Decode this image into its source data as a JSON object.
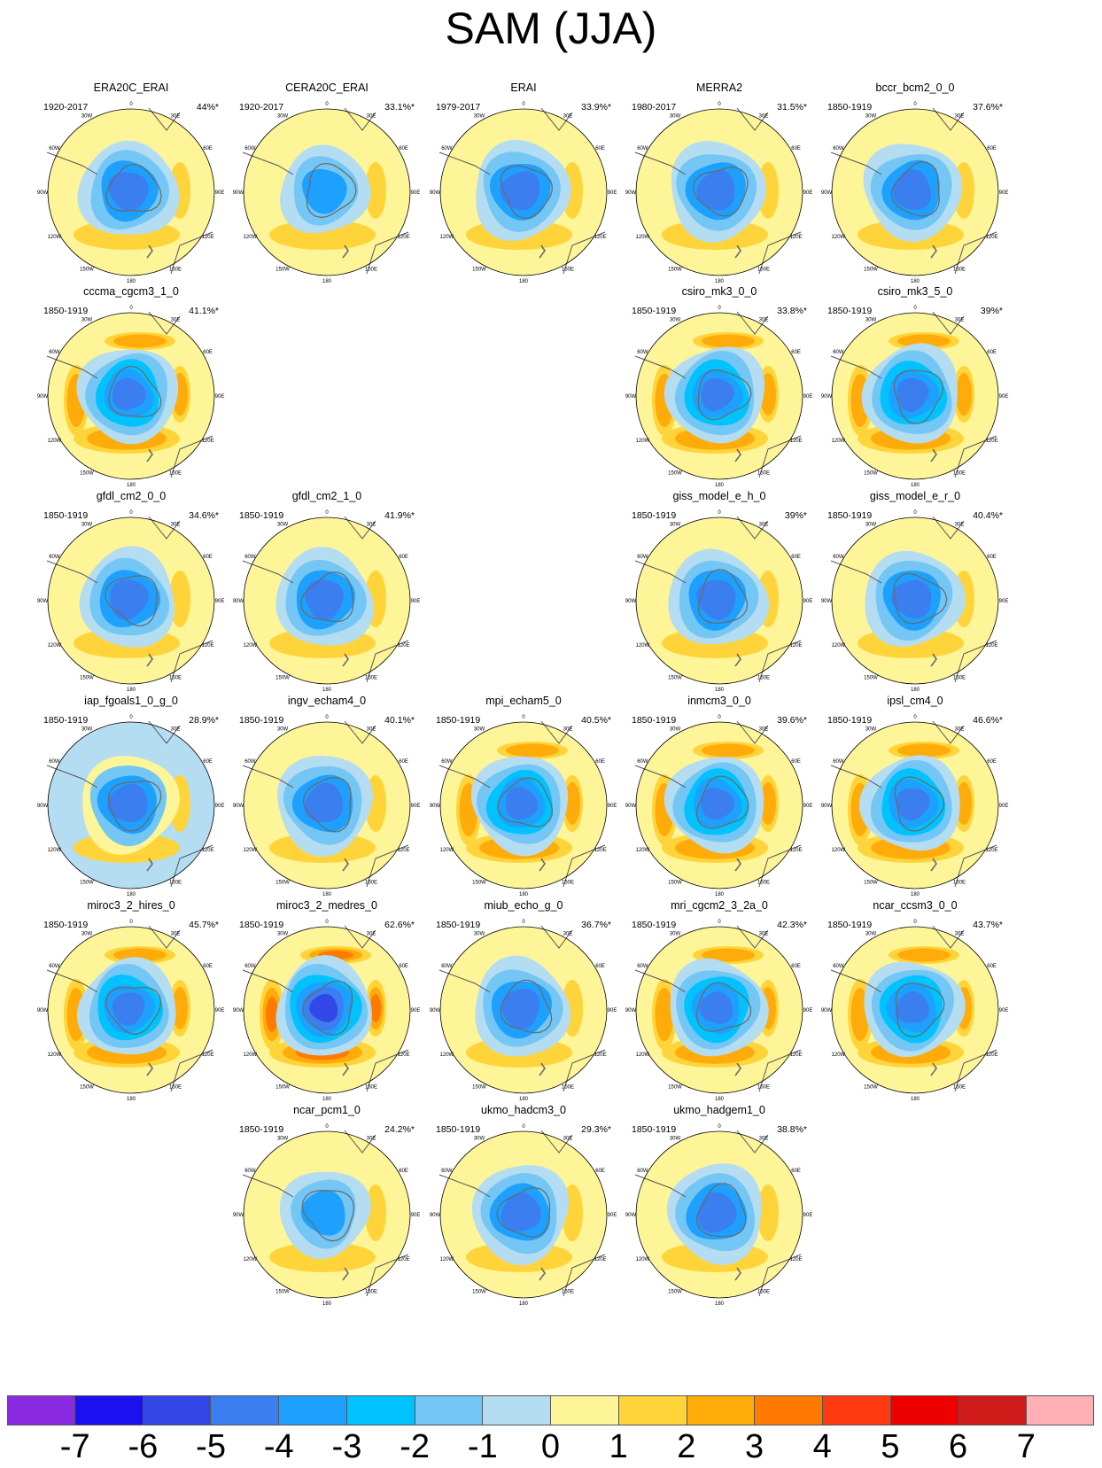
{
  "title": "SAM (JJA)",
  "longitude_labels": [
    "0",
    "30E",
    "60E",
    "90E",
    "120E",
    "150E",
    "180",
    "150W",
    "120W",
    "90W",
    "60W",
    "30W"
  ],
  "panels": [
    {
      "name": "ERA20C_ERAI",
      "period": "1920-2017",
      "variance": "44%*",
      "tone": "obs"
    },
    {
      "name": "CERA20C_ERAI",
      "period": "1920-2017",
      "variance": "33.1%*",
      "tone": "weak"
    },
    {
      "name": "ERAI",
      "period": "1979-2017",
      "variance": "33.9%*",
      "tone": "obs"
    },
    {
      "name": "MERRA2",
      "period": "1980-2017",
      "variance": "31.5%*",
      "tone": "obs"
    },
    {
      "name": "bccr_bcm2_0_0",
      "period": "1850-1919",
      "variance": "37.6%*",
      "tone": "obs"
    },
    {
      "name": "cccma_cgcm3_1_0",
      "period": "1850-1919",
      "variance": "41.1%*",
      "tone": "strong"
    },
    {
      "name": "csiro_mk3_0_0",
      "period": "1850-1919",
      "variance": "33.8%*",
      "tone": "strong"
    },
    {
      "name": "csiro_mk3_5_0",
      "period": "1850-1919",
      "variance": "39%*",
      "tone": "strong"
    },
    {
      "name": "gfdl_cm2_0_0",
      "period": "1850-1919",
      "variance": "34.6%*",
      "tone": "obs"
    },
    {
      "name": "gfdl_cm2_1_0",
      "period": "1850-1919",
      "variance": "41.9%*",
      "tone": "obs"
    },
    {
      "name": "giss_model_e_h_0",
      "period": "1850-1919",
      "variance": "39%*",
      "tone": "obs"
    },
    {
      "name": "giss_model_e_r_0",
      "period": "1850-1919",
      "variance": "40.4%*",
      "tone": "obs"
    },
    {
      "name": "iap_fgoals1_0_g_0",
      "period": "1850-1919",
      "variance": "28.9%*",
      "tone": "offset"
    },
    {
      "name": "ingv_echam4_0",
      "period": "1850-1919",
      "variance": "40.1%*",
      "tone": "obs"
    },
    {
      "name": "mpi_echam5_0",
      "period": "1850-1919",
      "variance": "40.5%*",
      "tone": "strong"
    },
    {
      "name": "inmcm3_0_0",
      "period": "1850-1919",
      "variance": "39.6%*",
      "tone": "strong"
    },
    {
      "name": "ipsl_cm4_0",
      "period": "1850-1919",
      "variance": "46.6%*",
      "tone": "strong"
    },
    {
      "name": "miroc3_2_hires_0",
      "period": "1850-1919",
      "variance": "45.7%*",
      "tone": "strong"
    },
    {
      "name": "miroc3_2_medres_0",
      "period": "1850-1919",
      "variance": "62.6%*",
      "tone": "verystrong"
    },
    {
      "name": "miub_echo_g_0",
      "period": "1850-1919",
      "variance": "36.7%*",
      "tone": "obs"
    },
    {
      "name": "mri_cgcm2_3_2a_0",
      "period": "1850-1919",
      "variance": "42.3%*",
      "tone": "strong"
    },
    {
      "name": "ncar_ccsm3_0_0",
      "period": "1850-1919",
      "variance": "43.7%*",
      "tone": "strong"
    },
    {
      "name": "ncar_pcm1_0",
      "period": "1850-1919",
      "variance": "24.2%*",
      "tone": "weak"
    },
    {
      "name": "ukmo_hadcm3_0",
      "period": "1850-1919",
      "variance": "29.3%*",
      "tone": "obs"
    },
    {
      "name": "ukmo_hadgem1_0",
      "period": "1850-1919",
      "variance": "38.8%*",
      "tone": "obs"
    }
  ],
  "colorbar": {
    "labels": [
      "-7",
      "-6",
      "-5",
      "-4",
      "-3",
      "-2",
      "-1",
      "0",
      "1",
      "2",
      "3",
      "4",
      "5",
      "6",
      "7"
    ],
    "colors": [
      "#8a2be2",
      "#1a10f0",
      "#3347e6",
      "#3a7ef0",
      "#1ea0ff",
      "#00c2ff",
      "#74c7f5",
      "#b4ddf2",
      "#fef598",
      "#ffd43a",
      "#ffab0a",
      "#ff7a00",
      "#ff3a10",
      "#ee0000",
      "#cf1a1a",
      "#ffb0b4"
    ]
  }
}
